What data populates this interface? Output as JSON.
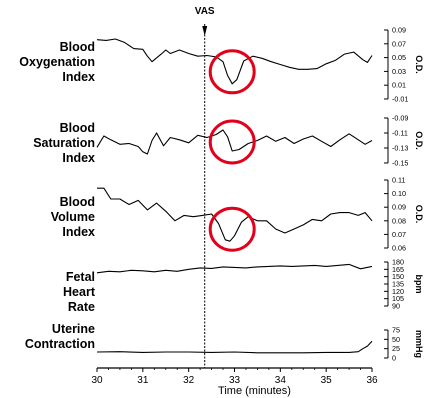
{
  "figure": {
    "marker_label": "VAS",
    "marker_time": 32.35
  },
  "chart_data": [
    {
      "type": "line",
      "title": "Blood Oxygenation Index",
      "ylabel": "O.D.",
      "ylim": [
        -0.01,
        0.09
      ],
      "yticks": [
        "0.09",
        "0.07",
        "0.05",
        "0.03",
        "0.01",
        "-0.01"
      ],
      "highlight": {
        "x_center": 32.95,
        "annotation": "circle"
      },
      "series": [
        {
          "x": [
            30.0,
            30.2,
            30.4,
            30.6,
            30.8,
            31.0,
            31.1,
            31.2,
            31.4,
            31.5,
            31.6,
            31.8,
            32.0,
            32.2,
            32.4,
            32.6,
            32.75,
            32.85,
            32.95,
            33.05,
            33.2,
            33.4,
            33.6,
            33.8,
            34.0,
            34.2,
            34.4,
            34.6,
            34.8,
            35.0,
            35.2,
            35.4,
            35.6,
            35.8,
            35.9,
            36.0
          ],
          "y": [
            0.076,
            0.075,
            0.077,
            0.072,
            0.063,
            0.062,
            0.052,
            0.044,
            0.055,
            0.061,
            0.056,
            0.061,
            0.056,
            0.052,
            0.053,
            0.051,
            0.044,
            0.024,
            0.012,
            0.018,
            0.045,
            0.052,
            0.049,
            0.044,
            0.04,
            0.036,
            0.033,
            0.033,
            0.034,
            0.041,
            0.046,
            0.055,
            0.058,
            0.047,
            0.043,
            0.053
          ]
        }
      ]
    },
    {
      "type": "line",
      "title": "Blood Saturation Index",
      "ylabel": "O.D.",
      "ylim": [
        -0.15,
        -0.09
      ],
      "yticks": [
        "-0.09",
        "-0.11",
        "-0.13",
        "-0.15"
      ],
      "highlight": {
        "x_center": 32.95,
        "annotation": "circle"
      },
      "series": [
        {
          "x": [
            30.0,
            30.15,
            30.3,
            30.5,
            30.7,
            30.9,
            31.0,
            31.1,
            31.2,
            31.3,
            31.45,
            31.6,
            31.8,
            32.0,
            32.2,
            32.4,
            32.6,
            32.75,
            32.85,
            32.95,
            33.1,
            33.3,
            33.5,
            33.7,
            33.9,
            34.1,
            34.3,
            34.5,
            34.7,
            34.9,
            35.1,
            35.3,
            35.5,
            35.7,
            35.85,
            36.0
          ],
          "y": [
            -0.129,
            -0.114,
            -0.119,
            -0.125,
            -0.124,
            -0.128,
            -0.135,
            -0.138,
            -0.12,
            -0.11,
            -0.127,
            -0.116,
            -0.119,
            -0.123,
            -0.113,
            -0.116,
            -0.112,
            -0.106,
            -0.115,
            -0.134,
            -0.132,
            -0.124,
            -0.12,
            -0.114,
            -0.121,
            -0.116,
            -0.124,
            -0.118,
            -0.114,
            -0.121,
            -0.128,
            -0.119,
            -0.111,
            -0.119,
            -0.125,
            -0.12
          ]
        }
      ]
    },
    {
      "type": "line",
      "title": "Blood Volume Index",
      "ylabel": "O.D.",
      "ylim": [
        0.06,
        0.11
      ],
      "yticks": [
        "0.11",
        "0.10",
        "0.09",
        "0.08",
        "0.07",
        "0.06"
      ],
      "highlight": {
        "x_center": 32.95,
        "annotation": "circle"
      },
      "series": [
        {
          "x": [
            30.0,
            30.15,
            30.3,
            30.5,
            30.7,
            30.9,
            31.1,
            31.3,
            31.5,
            31.7,
            31.9,
            32.1,
            32.3,
            32.5,
            32.65,
            32.8,
            32.9,
            33.0,
            33.15,
            33.3,
            33.5,
            33.7,
            33.9,
            34.1,
            34.3,
            34.5,
            34.7,
            34.9,
            35.1,
            35.3,
            35.5,
            35.7,
            35.85,
            36.0
          ],
          "y": [
            0.104,
            0.104,
            0.096,
            0.096,
            0.092,
            0.095,
            0.088,
            0.093,
            0.087,
            0.08,
            0.084,
            0.083,
            0.084,
            0.085,
            0.078,
            0.066,
            0.065,
            0.069,
            0.079,
            0.083,
            0.08,
            0.08,
            0.074,
            0.071,
            0.074,
            0.077,
            0.081,
            0.08,
            0.085,
            0.086,
            0.086,
            0.084,
            0.086,
            0.08
          ]
        }
      ]
    },
    {
      "type": "line",
      "title": "Fetal Heart Rate",
      "ylabel": "bpm",
      "ylim": [
        90,
        180
      ],
      "yticks": [
        "180",
        "165",
        "150",
        "135",
        "120",
        "105",
        "90"
      ],
      "series": [
        {
          "x": [
            30.0,
            30.25,
            30.5,
            30.75,
            31.0,
            31.25,
            31.5,
            31.75,
            32.0,
            32.25,
            32.5,
            32.75,
            33.0,
            33.25,
            33.5,
            33.75,
            34.0,
            34.25,
            34.5,
            34.75,
            35.0,
            35.25,
            35.5,
            35.75,
            36.0
          ],
          "y": [
            158,
            161,
            160,
            163,
            162,
            160,
            163,
            161,
            165,
            168,
            167,
            170,
            169,
            168,
            170,
            171,
            172,
            171,
            172,
            173,
            171,
            173,
            175,
            166,
            171
          ]
        }
      ]
    },
    {
      "type": "line",
      "title": "Uterine Contraction",
      "ylabel": "mmHg",
      "ylim": [
        0,
        75
      ],
      "yticks": [
        "75",
        "50",
        "25",
        "0"
      ],
      "series": [
        {
          "x": [
            30.0,
            30.5,
            31.0,
            31.5,
            32.0,
            32.5,
            33.0,
            33.5,
            34.0,
            34.5,
            35.0,
            35.5,
            35.7,
            35.8,
            35.9,
            36.0
          ],
          "y": [
            16,
            17,
            15,
            16,
            16,
            15,
            16,
            14,
            14,
            14,
            15,
            15,
            17,
            25,
            32,
            45
          ]
        }
      ]
    }
  ],
  "x_axis": {
    "label": "Time (minutes)",
    "ticks": [
      "30",
      "31",
      "32",
      "33",
      "34",
      "35",
      "36"
    ],
    "range": [
      30,
      36
    ]
  }
}
